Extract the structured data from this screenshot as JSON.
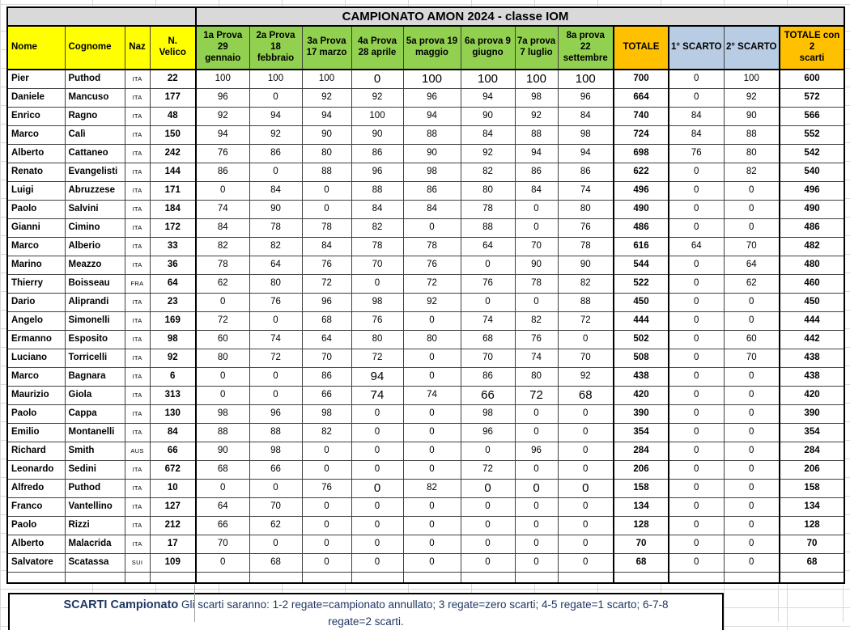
{
  "title": "CAMPIONATO AMON 2024 - classe IOM",
  "colors": {
    "header_yellow": "#FFFF00",
    "header_green": "#92D050",
    "header_orange": "#FFC000",
    "header_blue": "#B8CCE4",
    "title_gray": "#D9D9D9",
    "footer_text": "#1F3864"
  },
  "columns": [
    {
      "key": "nome",
      "label": "Nome",
      "bg": "yellow",
      "align": "left"
    },
    {
      "key": "cognome",
      "label": "Cognome",
      "bg": "yellow",
      "align": "left"
    },
    {
      "key": "naz",
      "label": "Naz",
      "bg": "yellow",
      "align": "center"
    },
    {
      "key": "velico",
      "label": "N.\nVelico",
      "bg": "yellow",
      "align": "center"
    },
    {
      "key": "prova1",
      "label": "1a Prova\n29\ngennaio",
      "bg": "green",
      "align": "center"
    },
    {
      "key": "prova2",
      "label": "2a Prova\n18\nfebbraio",
      "bg": "green",
      "align": "center"
    },
    {
      "key": "prova3",
      "label": "3a Prova\n17 marzo",
      "bg": "green",
      "align": "center"
    },
    {
      "key": "prova4",
      "label": "4a Prova\n28 aprile",
      "bg": "green",
      "align": "center"
    },
    {
      "key": "prova5",
      "label": "5a prova 19\nmaggio",
      "bg": "green",
      "align": "center"
    },
    {
      "key": "prova6",
      "label": "6a prova 9\ngiugno",
      "bg": "green",
      "align": "center"
    },
    {
      "key": "prova7",
      "label": "7a prova\n7 luglio",
      "bg": "green",
      "align": "center"
    },
    {
      "key": "prova8",
      "label": "8a prova\n22\nsettembre",
      "bg": "green",
      "align": "center"
    },
    {
      "key": "totale",
      "label": "TOTALE",
      "bg": "orange",
      "align": "center"
    },
    {
      "key": "scarto1",
      "label": "1° SCARTO",
      "bg": "blue",
      "align": "center"
    },
    {
      "key": "scarto2",
      "label": "2° SCARTO",
      "bg": "blue",
      "align": "center"
    },
    {
      "key": "totale2",
      "label": "TOTALE con 2\nscarti",
      "bg": "orange",
      "align": "center"
    }
  ],
  "rows": [
    {
      "nome": "Pier",
      "cognome": "Puthod",
      "naz": "ITA",
      "velico": 22,
      "races": [
        100,
        100,
        100,
        0,
        100,
        100,
        100,
        100
      ],
      "big": [
        3,
        4,
        5,
        6,
        7
      ],
      "totale": 700,
      "scarto1": 0,
      "scarto2": 100,
      "totale2": 600
    },
    {
      "nome": "Daniele",
      "cognome": "Mancuso",
      "naz": "ITA",
      "velico": 177,
      "races": [
        96,
        0,
        92,
        92,
        96,
        94,
        98,
        96
      ],
      "big": [],
      "totale": 664,
      "scarto1": 0,
      "scarto2": 92,
      "totale2": 572
    },
    {
      "nome": "Enrico",
      "cognome": "Ragno",
      "naz": "ITA",
      "velico": 48,
      "races": [
        92,
        94,
        94,
        100,
        94,
        90,
        92,
        84
      ],
      "big": [],
      "totale": 740,
      "scarto1": 84,
      "scarto2": 90,
      "totale2": 566
    },
    {
      "nome": "Marco",
      "cognome": "Calì",
      "naz": "ITA",
      "velico": 150,
      "races": [
        94,
        92,
        90,
        90,
        88,
        84,
        88,
        98
      ],
      "big": [],
      "totale": 724,
      "scarto1": 84,
      "scarto2": 88,
      "totale2": 552
    },
    {
      "nome": "Alberto",
      "cognome": "Cattaneo",
      "naz": "ITA",
      "velico": 242,
      "races": [
        76,
        86,
        80,
        86,
        90,
        92,
        94,
        94
      ],
      "big": [],
      "totale": 698,
      "scarto1": 76,
      "scarto2": 80,
      "totale2": 542
    },
    {
      "nome": "Renato",
      "cognome": "Evangelisti",
      "naz": "ITA",
      "velico": 144,
      "races": [
        86,
        0,
        88,
        96,
        98,
        82,
        86,
        86
      ],
      "big": [],
      "totale": 622,
      "scarto1": 0,
      "scarto2": 82,
      "totale2": 540
    },
    {
      "nome": "Luigi",
      "cognome": "Abruzzese",
      "naz": "ITA",
      "velico": 171,
      "races": [
        0,
        84,
        0,
        88,
        86,
        80,
        84,
        74
      ],
      "big": [],
      "totale": 496,
      "scarto1": 0,
      "scarto2": 0,
      "totale2": 496
    },
    {
      "nome": "Paolo",
      "cognome": "Salvini",
      "naz": "ITA",
      "velico": 184,
      "races": [
        74,
        90,
        0,
        84,
        84,
        78,
        0,
        80
      ],
      "big": [],
      "totale": 490,
      "scarto1": 0,
      "scarto2": 0,
      "totale2": 490
    },
    {
      "nome": "Gianni",
      "cognome": "Cimino",
      "naz": "ITA",
      "velico": 172,
      "races": [
        84,
        78,
        78,
        82,
        0,
        88,
        0,
        76
      ],
      "big": [],
      "totale": 486,
      "scarto1": 0,
      "scarto2": 0,
      "totale2": 486
    },
    {
      "nome": "Marco",
      "cognome": "Alberio",
      "naz": "ITA",
      "velico": 33,
      "races": [
        82,
        82,
        84,
        78,
        78,
        64,
        70,
        78
      ],
      "big": [],
      "totale": 616,
      "scarto1": 64,
      "scarto2": 70,
      "totale2": 482
    },
    {
      "nome": "Marino",
      "cognome": "Meazzo",
      "naz": "ITA",
      "velico": 36,
      "races": [
        78,
        64,
        76,
        70,
        76,
        0,
        90,
        90
      ],
      "big": [],
      "totale": 544,
      "scarto1": 0,
      "scarto2": 64,
      "totale2": 480
    },
    {
      "nome": "Thierry",
      "cognome": "Boisseau",
      "naz": "FRA",
      "velico": 64,
      "races": [
        62,
        80,
        72,
        0,
        72,
        76,
        78,
        82
      ],
      "big": [],
      "totale": 522,
      "scarto1": 0,
      "scarto2": 62,
      "totale2": 460
    },
    {
      "nome": "Dario",
      "cognome": "Aliprandi",
      "naz": "ITA",
      "velico": 23,
      "races": [
        0,
        76,
        96,
        98,
        92,
        0,
        0,
        88
      ],
      "big": [],
      "totale": 450,
      "scarto1": 0,
      "scarto2": 0,
      "totale2": 450
    },
    {
      "nome": "Angelo",
      "cognome": "Simonelli",
      "naz": "ITA",
      "velico": 169,
      "races": [
        72,
        0,
        68,
        76,
        0,
        74,
        82,
        72
      ],
      "big": [],
      "totale": 444,
      "scarto1": 0,
      "scarto2": 0,
      "totale2": 444
    },
    {
      "nome": "Ermanno",
      "cognome": "Esposito",
      "naz": "ITA",
      "velico": 98,
      "races": [
        60,
        74,
        64,
        80,
        80,
        68,
        76,
        0
      ],
      "big": [],
      "totale": 502,
      "scarto1": 0,
      "scarto2": 60,
      "totale2": 442
    },
    {
      "nome": "Luciano",
      "cognome": "Torricelli",
      "naz": "ITA",
      "velico": 92,
      "races": [
        80,
        72,
        70,
        72,
        0,
        70,
        74,
        70
      ],
      "big": [],
      "totale": 508,
      "scarto1": 0,
      "scarto2": 70,
      "totale2": 438
    },
    {
      "nome": "Marco",
      "cognome": "Bagnara",
      "naz": "ITA",
      "velico": 6,
      "races": [
        0,
        0,
        86,
        94,
        0,
        86,
        80,
        92
      ],
      "big": [
        3
      ],
      "totale": 438,
      "scarto1": 0,
      "scarto2": 0,
      "totale2": 438
    },
    {
      "nome": "Maurizio",
      "cognome": "Giola",
      "naz": "ITA",
      "velico": 313,
      "races": [
        0,
        0,
        66,
        74,
        74,
        66,
        72,
        68
      ],
      "big": [
        3,
        5,
        6,
        7
      ],
      "totale": 420,
      "scarto1": 0,
      "scarto2": 0,
      "totale2": 420
    },
    {
      "nome": "Paolo",
      "cognome": "Cappa",
      "naz": "ITA",
      "velico": 130,
      "races": [
        98,
        96,
        98,
        0,
        0,
        98,
        0,
        0
      ],
      "big": [],
      "totale": 390,
      "scarto1": 0,
      "scarto2": 0,
      "totale2": 390
    },
    {
      "nome": "Emilio",
      "cognome": "Montanelli",
      "naz": "ITA",
      "velico": 84,
      "races": [
        88,
        88,
        82,
        0,
        0,
        96,
        0,
        0
      ],
      "big": [],
      "totale": 354,
      "scarto1": 0,
      "scarto2": 0,
      "totale2": 354
    },
    {
      "nome": "Richard",
      "cognome": "Smith",
      "naz": "AUS",
      "velico": 66,
      "races": [
        90,
        98,
        0,
        0,
        0,
        0,
        96,
        0
      ],
      "big": [],
      "totale": 284,
      "scarto1": 0,
      "scarto2": 0,
      "totale2": 284
    },
    {
      "nome": "Leonardo",
      "cognome": "Sedini",
      "naz": "ITA",
      "velico": 672,
      "races": [
        68,
        66,
        0,
        0,
        0,
        72,
        0,
        0
      ],
      "big": [],
      "totale": 206,
      "scarto1": 0,
      "scarto2": 0,
      "totale2": 206
    },
    {
      "nome": "Alfredo",
      "cognome": "Puthod",
      "naz": "ITA",
      "velico": 10,
      "races": [
        0,
        0,
        76,
        0,
        82,
        0,
        0,
        0
      ],
      "big": [
        3,
        5,
        6,
        7
      ],
      "totale": 158,
      "scarto1": 0,
      "scarto2": 0,
      "totale2": 158
    },
    {
      "nome": "Franco",
      "cognome": "Vantellino",
      "naz": "ITA",
      "velico": 127,
      "races": [
        64,
        70,
        0,
        0,
        0,
        0,
        0,
        0
      ],
      "big": [],
      "totale": 134,
      "scarto1": 0,
      "scarto2": 0,
      "totale2": 134
    },
    {
      "nome": "Paolo",
      "cognome": "Rizzi",
      "naz": "ITA",
      "velico": 212,
      "races": [
        66,
        62,
        0,
        0,
        0,
        0,
        0,
        0
      ],
      "big": [],
      "totale": 128,
      "scarto1": 0,
      "scarto2": 0,
      "totale2": 128
    },
    {
      "nome": "Alberto",
      "cognome": "Malacrida",
      "naz": "ITA",
      "velico": 17,
      "races": [
        70,
        0,
        0,
        0,
        0,
        0,
        0,
        0
      ],
      "big": [],
      "totale": 70,
      "scarto1": 0,
      "scarto2": 0,
      "totale2": 70
    },
    {
      "nome": "Salvatore",
      "cognome": "Scatassa",
      "naz": "SUI",
      "velico": 109,
      "races": [
        0,
        68,
        0,
        0,
        0,
        0,
        0,
        0
      ],
      "big": [],
      "totale": 68,
      "scarto1": 0,
      "scarto2": 0,
      "totale2": 68
    }
  ],
  "footer": {
    "bold": "SCARTI Campionato",
    "text": "Gli scarti saranno: 1-2 regate=campionato annullato; 3 regate=zero scarti; 4-5 regate=1 scarto; 6-7-8 regate=2 scarti."
  }
}
